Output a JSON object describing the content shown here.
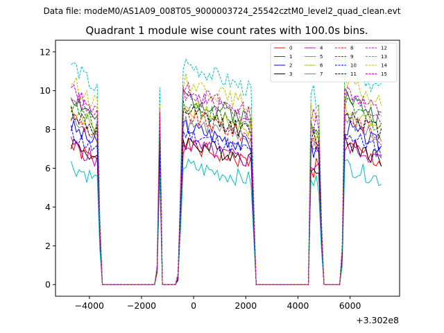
{
  "figure": {
    "suptitle": "Data file: modeM0/AS1A09_008T05_9000003724_25542cztM0_level2_quad_clean.evt",
    "offset_label": "+3.302e8"
  },
  "chart_data": {
    "type": "line",
    "title": "Quadrant 1 module wise count rates with 100.0s bins.",
    "xlabel": "",
    "ylabel": "",
    "x_offset": 330200000,
    "xlim": [
      -5300,
      7900
    ],
    "ylim": [
      -0.6,
      12.6
    ],
    "xticks": [
      -4000,
      -2000,
      0,
      2000,
      4000,
      6000
    ],
    "xtick_labels": [
      "−4000",
      "−2000",
      "0",
      "2000",
      "4000",
      "6000"
    ],
    "yticks": [
      0,
      2,
      4,
      6,
      8,
      10,
      12
    ],
    "ytick_labels": [
      "0",
      "2",
      "4",
      "6",
      "8",
      "10",
      "12"
    ],
    "legend_position": "top-right",
    "segments": [
      {
        "start": -4700,
        "end": -3700,
        "kind": "plateau"
      },
      {
        "start": -3600,
        "end": -3500,
        "kind": "decay",
        "frac": [
          0.35,
          0.0
        ]
      },
      {
        "start": -3400,
        "end": -1500,
        "kind": "zero"
      },
      {
        "start": -1400,
        "end": -1200,
        "kind": "spike",
        "frac": [
          0.1,
          1.0,
          0.0
        ]
      },
      {
        "start": -1100,
        "end": -700,
        "kind": "zero"
      },
      {
        "start": -600,
        "end": -500,
        "kind": "rise",
        "frac": [
          0.05,
          0.55
        ]
      },
      {
        "start": -400,
        "end": 2200,
        "kind": "plateau"
      },
      {
        "start": 2300,
        "end": 2300,
        "kind": "decay",
        "frac": [
          0.45
        ]
      },
      {
        "start": 2400,
        "end": 4400,
        "kind": "zero"
      },
      {
        "start": 4500,
        "end": 4800,
        "kind": "plateau_short"
      },
      {
        "start": 4900,
        "end": 4900,
        "kind": "decay",
        "frac": [
          0.35
        ]
      },
      {
        "start": 5000,
        "end": 5600,
        "kind": "zero"
      },
      {
        "start": 5700,
        "end": 5700,
        "kind": "rise",
        "frac": [
          0.2
        ]
      },
      {
        "start": 5800,
        "end": 7200,
        "kind": "plateau"
      }
    ],
    "series": [
      {
        "name": "0",
        "color": "#ff0000",
        "dash": "solid",
        "level": 6.4
      },
      {
        "name": "1",
        "color": "#008000",
        "dash": "solid",
        "level": 8.7
      },
      {
        "name": "2",
        "color": "#0000ff",
        "dash": "solid",
        "level": 7.3
      },
      {
        "name": "3",
        "color": "#000000",
        "dash": "solid",
        "level": 6.6
      },
      {
        "name": "4",
        "color": "#bf00bf",
        "dash": "solid",
        "level": 6.5
      },
      {
        "name": "5",
        "color": "#00bfbf",
        "dash": "solid",
        "level": 5.5
      },
      {
        "name": "6",
        "color": "#bfbf00",
        "dash": "solid",
        "level": 8.2
      },
      {
        "name": "7",
        "color": "#808080",
        "dash": "solid",
        "level": 7.6
      },
      {
        "name": "8",
        "color": "#ff0000",
        "dash": "dashed",
        "level": 7.8
      },
      {
        "name": "9",
        "color": "#008000",
        "dash": "dashed",
        "level": 8.3
      },
      {
        "name": "10",
        "color": "#0000ff",
        "dash": "dashed",
        "level": 7.0
      },
      {
        "name": "11",
        "color": "#000000",
        "dash": "dashed",
        "level": 8.0
      },
      {
        "name": "12",
        "color": "#bf00bf",
        "dash": "dashed",
        "level": 9.0
      },
      {
        "name": "13",
        "color": "#00bfbf",
        "dash": "dashed",
        "level": 10.2
      },
      {
        "name": "14",
        "color": "#bfbf00",
        "dash": "dashed",
        "level": 9.4
      },
      {
        "name": "15",
        "color": "#bf00bf",
        "dash": "dashed",
        "level": 8.8
      }
    ]
  }
}
